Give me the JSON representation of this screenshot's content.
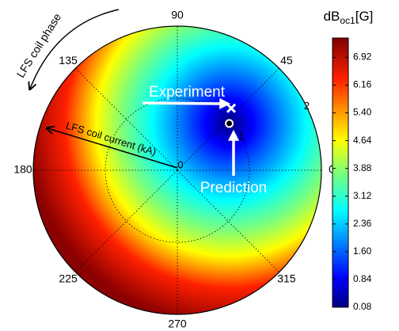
{
  "chart_data": {
    "type": "polar-heatmap",
    "rlim": [
      0,
      2
    ],
    "rticks": [
      0,
      1,
      2
    ],
    "thetaticks": [
      0,
      45,
      90,
      135,
      180,
      225,
      270,
      315
    ],
    "grid": true,
    "phase_label": "LFS coil phase",
    "radius_label": "LFS coil current (kA)",
    "points": [
      {
        "name": "Experiment",
        "r": 1.14,
        "theta": 49,
        "marker": "x",
        "color": "#ffffff"
      },
      {
        "name": "Prediction",
        "r": 0.97,
        "theta": 42,
        "marker": "o",
        "color": "#000000"
      }
    ],
    "colorbar": {
      "title": "dB",
      "title_sub": "oc1",
      "title_unit": "[G]",
      "colormap": "jet",
      "clim": [
        0.08,
        7.45
      ],
      "ticks": [
        0.08,
        0.84,
        {
          "value": 1.6,
          "label": "1.60"
        },
        2.36,
        3.12,
        3.88,
        4.64,
        {
          "value": 5.4,
          "label": "5.40"
        },
        6.16,
        6.92
      ]
    }
  }
}
